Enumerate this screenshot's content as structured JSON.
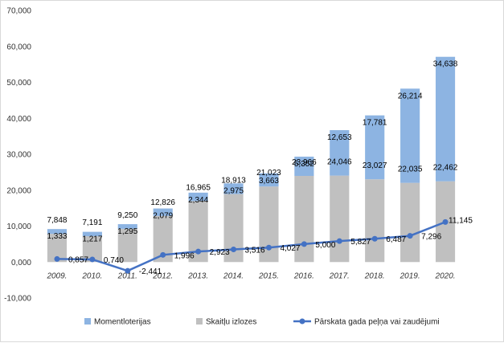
{
  "chart_data": {
    "type": "bar",
    "stacked": true,
    "categories": [
      "2009.",
      "2010.",
      "2011.",
      "2012.",
      "2013.",
      "2014.",
      "2015.",
      "2016.",
      "2017.",
      "2018.",
      "2019.",
      "2020."
    ],
    "series": [
      {
        "name": "Skaitļu izlozes",
        "kind": "bar",
        "color": "#c0c0c0",
        "values": [
          7.848,
          7.191,
          9.25,
          12.826,
          16.965,
          18.913,
          21.023,
          23.966,
          24.046,
          23.027,
          22.035,
          22.462
        ],
        "labels": [
          "7,848",
          "7,191",
          "9,250",
          "12,826",
          "16,965",
          "18,913",
          "21,023",
          "23,966",
          "24,046",
          "23,027",
          "22,035",
          "22,462"
        ]
      },
      {
        "name": "Momentloterijas",
        "kind": "bar",
        "color": "#8db4e2",
        "values": [
          1.333,
          1.217,
          1.295,
          2.079,
          2.344,
          2.975,
          3.663,
          5.352,
          12.653,
          17.781,
          26.214,
          34.638
        ],
        "labels": [
          "1,333",
          "1,217",
          "1,295",
          "2,079",
          "2,344",
          "2,975",
          "3,663",
          "5,352",
          "12,653",
          "17,781",
          "26,214",
          "34,638"
        ]
      },
      {
        "name": "Pārskata gada peļņa vai zaudējumi",
        "kind": "line",
        "color": "#4472c4",
        "values": [
          0.857,
          0.74,
          -2.441,
          1.996,
          2.923,
          3.516,
          4.027,
          5.0,
          5.827,
          6.487,
          7.296,
          11.145
        ],
        "labels": [
          "0,857",
          "0,740",
          "-2,441",
          "1,996",
          "2,923",
          "3,516",
          "4,027",
          "5,000",
          "5,827",
          "6,487",
          "7,296",
          "11,145"
        ]
      }
    ],
    "ylim": [
      -10,
      70
    ],
    "yticks": [
      -10,
      0,
      10,
      20,
      30,
      40,
      50,
      60,
      70
    ],
    "ytick_labels": [
      "-10,000",
      "0,000",
      "10,000",
      "20,000",
      "30,000",
      "40,000",
      "50,000",
      "60,000",
      "70,000"
    ],
    "title": "",
    "xlabel": "",
    "ylabel": "",
    "grid": false,
    "legend": {
      "position": "bottom",
      "items": [
        "Momentloterijas",
        "Skaitļu izlozes",
        "Pārskata gada peļņa vai zaudējumi"
      ]
    }
  }
}
